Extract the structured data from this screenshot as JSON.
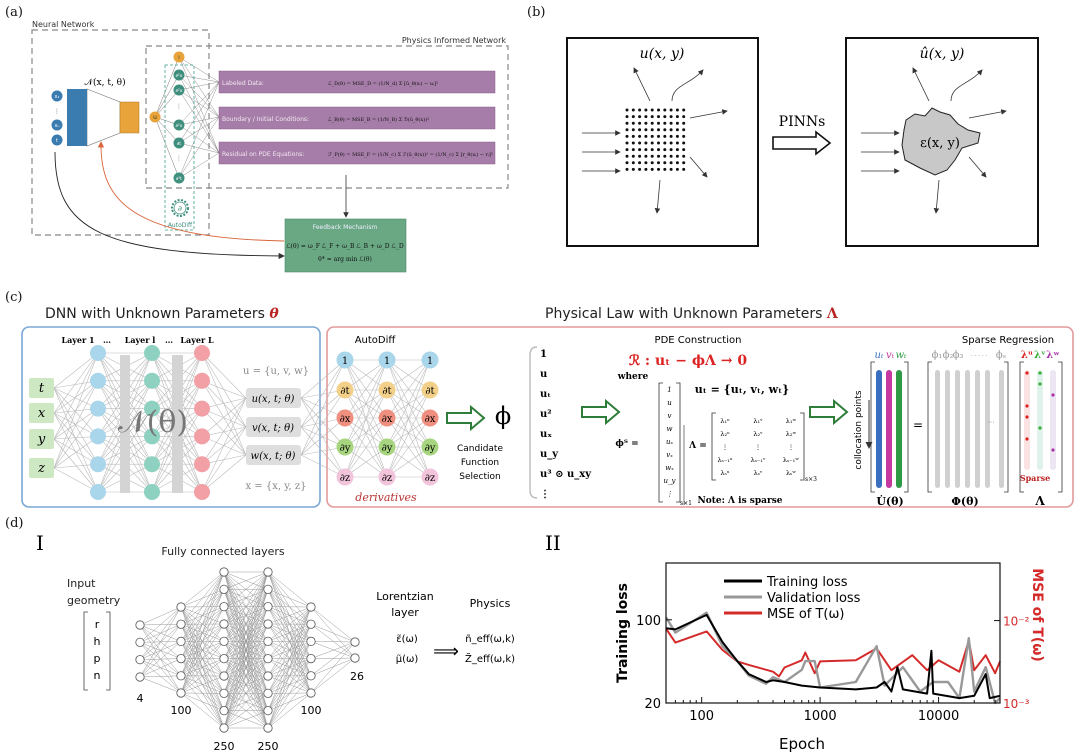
{
  "panel_labels": {
    "a": "(a)",
    "b": "(b)",
    "c": "(c)",
    "d": "(d)",
    "d1": "I",
    "d2": "II"
  },
  "panel_a": {
    "neural_network_label": "Neural Network",
    "pin_label": "Physics Informed Network",
    "network_label": "𝒩(x, t, θ)",
    "inputs": [
      "x₁",
      "xₙ",
      "t"
    ],
    "output_node": "u",
    "derivative_nodes": [
      "I",
      "∂²x",
      "∂²x",
      "∂²x",
      "∂t",
      "∂²t"
    ],
    "autodiff_label": "AutoDiff",
    "loss_terms": [
      {
        "label": "Labeled Data:",
        "formula": "ℒ_D(θ) = MSE_D = (1/N_d) Σ [û_θ(xᵢ) − uᵢ]²"
      },
      {
        "label": "Boundary / Initial Conditions:",
        "formula": "ℒ_B(θ) = MSE_B = (1/N_B) Σ ℬ(û_θ(x))²"
      },
      {
        "label": "Residual on PDE Equations:",
        "formula": "ℱ_P(θ) = MSE_F = (1/N_c) Σ ℱ(û_θ(x))² = (1/N_c) Σ [r_θ(xᵢ) − rᵢ]²"
      }
    ],
    "feedback_title": "Feedback Mechanism",
    "feedback_formula_1": "ℒ(θ) = ω_F ℒ_F + ω_B ℒ_B + ω_D ℒ_D",
    "feedback_formula_2": "θ* = arg min ℒ(θ)",
    "colors": {
      "blue": "#3a7bb0",
      "orange": "#e8a33a",
      "teal": "#3f8f7f",
      "purple": "#a67ca8",
      "green": "#6aa884",
      "red_arrow": "#d9643a"
    }
  },
  "panel_b": {
    "left_title": "u(x, y)",
    "right_title": "û(x, y)",
    "arrow_label": "PINNs",
    "blob_label": "ε(x, y)"
  },
  "panel_c": {
    "dnn_title": "DNN with Unknown Parameters",
    "dnn_symbol": "θ",
    "law_title": "Physical Law with Unknown Parameters",
    "law_symbol": "Λ",
    "layer_labels": [
      "Layer 1",
      "…",
      "Layer l",
      "…",
      "Layer L"
    ],
    "inputs": [
      "t",
      "x",
      "y",
      "z"
    ],
    "network_label": "𝒩(θ)",
    "u_set": "u = {u, v, w}",
    "outputs": [
      "u(x, t; θ)",
      "v(x, t; θ)",
      "w(x, t; θ)"
    ],
    "x_set": "x = {x, y, z}",
    "autodiff_title": "AutoDiff",
    "autodiff_nodes": [
      "1",
      "∂t",
      "∂x",
      "∂y",
      "∂z"
    ],
    "derivatives_label": "derivatives",
    "phi": "ϕ",
    "candidate_label": [
      "Candidate",
      "Function",
      "Selection"
    ],
    "library": [
      "1",
      "u",
      "uₜ",
      "u²",
      "uₓ",
      "u_y",
      "u³ ⊙ u_xy",
      "⋮"
    ],
    "pde_title": "PDE Construction",
    "residual": "ℛ : uₜ − ϕΛ → 0",
    "where": "where",
    "phi_T": "ϕᵀ =",
    "phi_vector": [
      "1",
      "u",
      "v",
      "w",
      "uₓ",
      "vₓ",
      "wₓ",
      "u_y",
      "⋮"
    ],
    "phi_dim": "s×1",
    "ut_set": "uₜ = {uₜ, vₜ, wₜ}",
    "lambda_eq": "Λ =",
    "lambda_rows": [
      [
        "λ₁ᵘ",
        "λ₁ᵛ",
        "λ₁ʷ"
      ],
      [
        "λ₂ᵘ",
        "λ₂ᵛ",
        "λ₂ʷ"
      ],
      [
        "⋮",
        "⋮",
        "⋮"
      ],
      [
        "λₛ₋₁ᵘ",
        "λₛ₋₁ᵛ",
        "λₛ₋₁ʷ"
      ],
      [
        "λₛᵘ",
        "λₛᵛ",
        "λₛʷ"
      ]
    ],
    "lambda_dim": "s×3",
    "note": "Note: Λ is sparse",
    "sparse_title": "Sparse Regression",
    "collocation_label": "collocation points",
    "u_dot_cols": [
      "uₜ",
      "vₜ",
      "wₜ"
    ],
    "u_dot_label": "U̇(θ)",
    "equals": "=",
    "phi_cols": [
      "ϕ₁",
      "ϕ₂",
      "ϕ₃",
      "· · · · ·",
      "ϕₛ"
    ],
    "phi_matrix_label": "Φ(θ)",
    "lambda_cols": [
      "λᵘ",
      "λᵛ",
      "λʷ"
    ],
    "sparse_label": "Sparse",
    "lambda_label": "Λ",
    "colors": {
      "blue_box": "#7aa7d6",
      "red_box": "#e39a9a",
      "layer1": "#a9d6ea",
      "layer2": "#8fd1c0",
      "layer3": "#f2a0a6",
      "input": "#cfe8c4",
      "arrow": "#2f7d3a",
      "ut": "#3a6fc0",
      "vt": "#c43aa0",
      "wt": "#2e9a44"
    }
  },
  "panel_d1": {
    "title": "Fully connected layers",
    "input_label": [
      "Input",
      "geometry"
    ],
    "input_vector": [
      "r",
      "h",
      "p",
      "n"
    ],
    "layer_sizes": [
      "4",
      "100",
      "250",
      "250",
      "100",
      "26"
    ],
    "lorentzian_label": [
      "Lorentzian",
      "layer"
    ],
    "epsilon": "ε̃(ω)",
    "mu": "μ̃(ω)",
    "implies": "⟹",
    "physics_label": "Physics",
    "n_eff": "ñ_eff(ω,k)",
    "z_eff": "Z̃_eff(ω,k)"
  },
  "chart_data": {
    "type": "line",
    "xlabel": "Epoch",
    "ylabel": "Training loss",
    "ylabel_right": "MSE of T(ω)",
    "xscale": "log",
    "yscale": "log",
    "yscale_right": "log",
    "xlim": [
      50,
      33000
    ],
    "ylim": [
      20,
      300
    ],
    "ylim_right": [
      0.001,
      0.05
    ],
    "xticks": [
      "100",
      "1000",
      "10000"
    ],
    "yticks": [
      "20",
      "100"
    ],
    "yticks_right": [
      "10⁻³",
      "10⁻²"
    ],
    "legend_position": "top-center",
    "series": [
      {
        "name": "Training loss",
        "color": "#000000",
        "axis": "left",
        "x": [
          50,
          60,
          110,
          150,
          200,
          250,
          350,
          400,
          500,
          700,
          1000,
          2000,
          3000,
          3500,
          4000,
          4500,
          5000,
          8000,
          8700,
          9000,
          15000,
          20000,
          25000,
          27000,
          33000
        ],
        "y": [
          85,
          83,
          110,
          65,
          45,
          35,
          30,
          31,
          30,
          28,
          27,
          26,
          27,
          30,
          25,
          40,
          26,
          24,
          55,
          24,
          22,
          23,
          35,
          22,
          23
        ]
      },
      {
        "name": "Validation loss",
        "color": "#999999",
        "axis": "left",
        "x": [
          50,
          60,
          110,
          150,
          200,
          250,
          350,
          400,
          500,
          700,
          750,
          900,
          1000,
          2000,
          3000,
          3500,
          5000,
          7000,
          9000,
          12000,
          15000,
          18000,
          20000,
          25000,
          30000,
          33000
        ],
        "y": [
          105,
          78,
          115,
          60,
          45,
          34,
          29,
          33,
          30,
          38,
          45,
          45,
          27,
          30,
          60,
          28,
          40,
          25,
          30,
          30,
          22,
          70,
          25,
          40,
          20,
          22
        ]
      },
      {
        "name": "MSE of T(ω)",
        "color": "#d42a2a",
        "axis": "right",
        "x": [
          50,
          60,
          110,
          150,
          200,
          250,
          400,
          450,
          500,
          700,
          750,
          900,
          1000,
          2000,
          3000,
          4000,
          6000,
          8000,
          10000,
          15000,
          18000,
          20000,
          25000,
          30000,
          33000
        ],
        "y": [
          0.008,
          0.0054,
          0.0074,
          0.0044,
          0.0032,
          0.0029,
          0.0024,
          0.0021,
          0.0027,
          0.0033,
          0.0041,
          0.0023,
          0.0032,
          0.0033,
          0.0046,
          0.0025,
          0.0038,
          0.0025,
          0.0033,
          0.0024,
          0.0057,
          0.0025,
          0.0038,
          0.0023,
          0.0032
        ]
      }
    ]
  }
}
